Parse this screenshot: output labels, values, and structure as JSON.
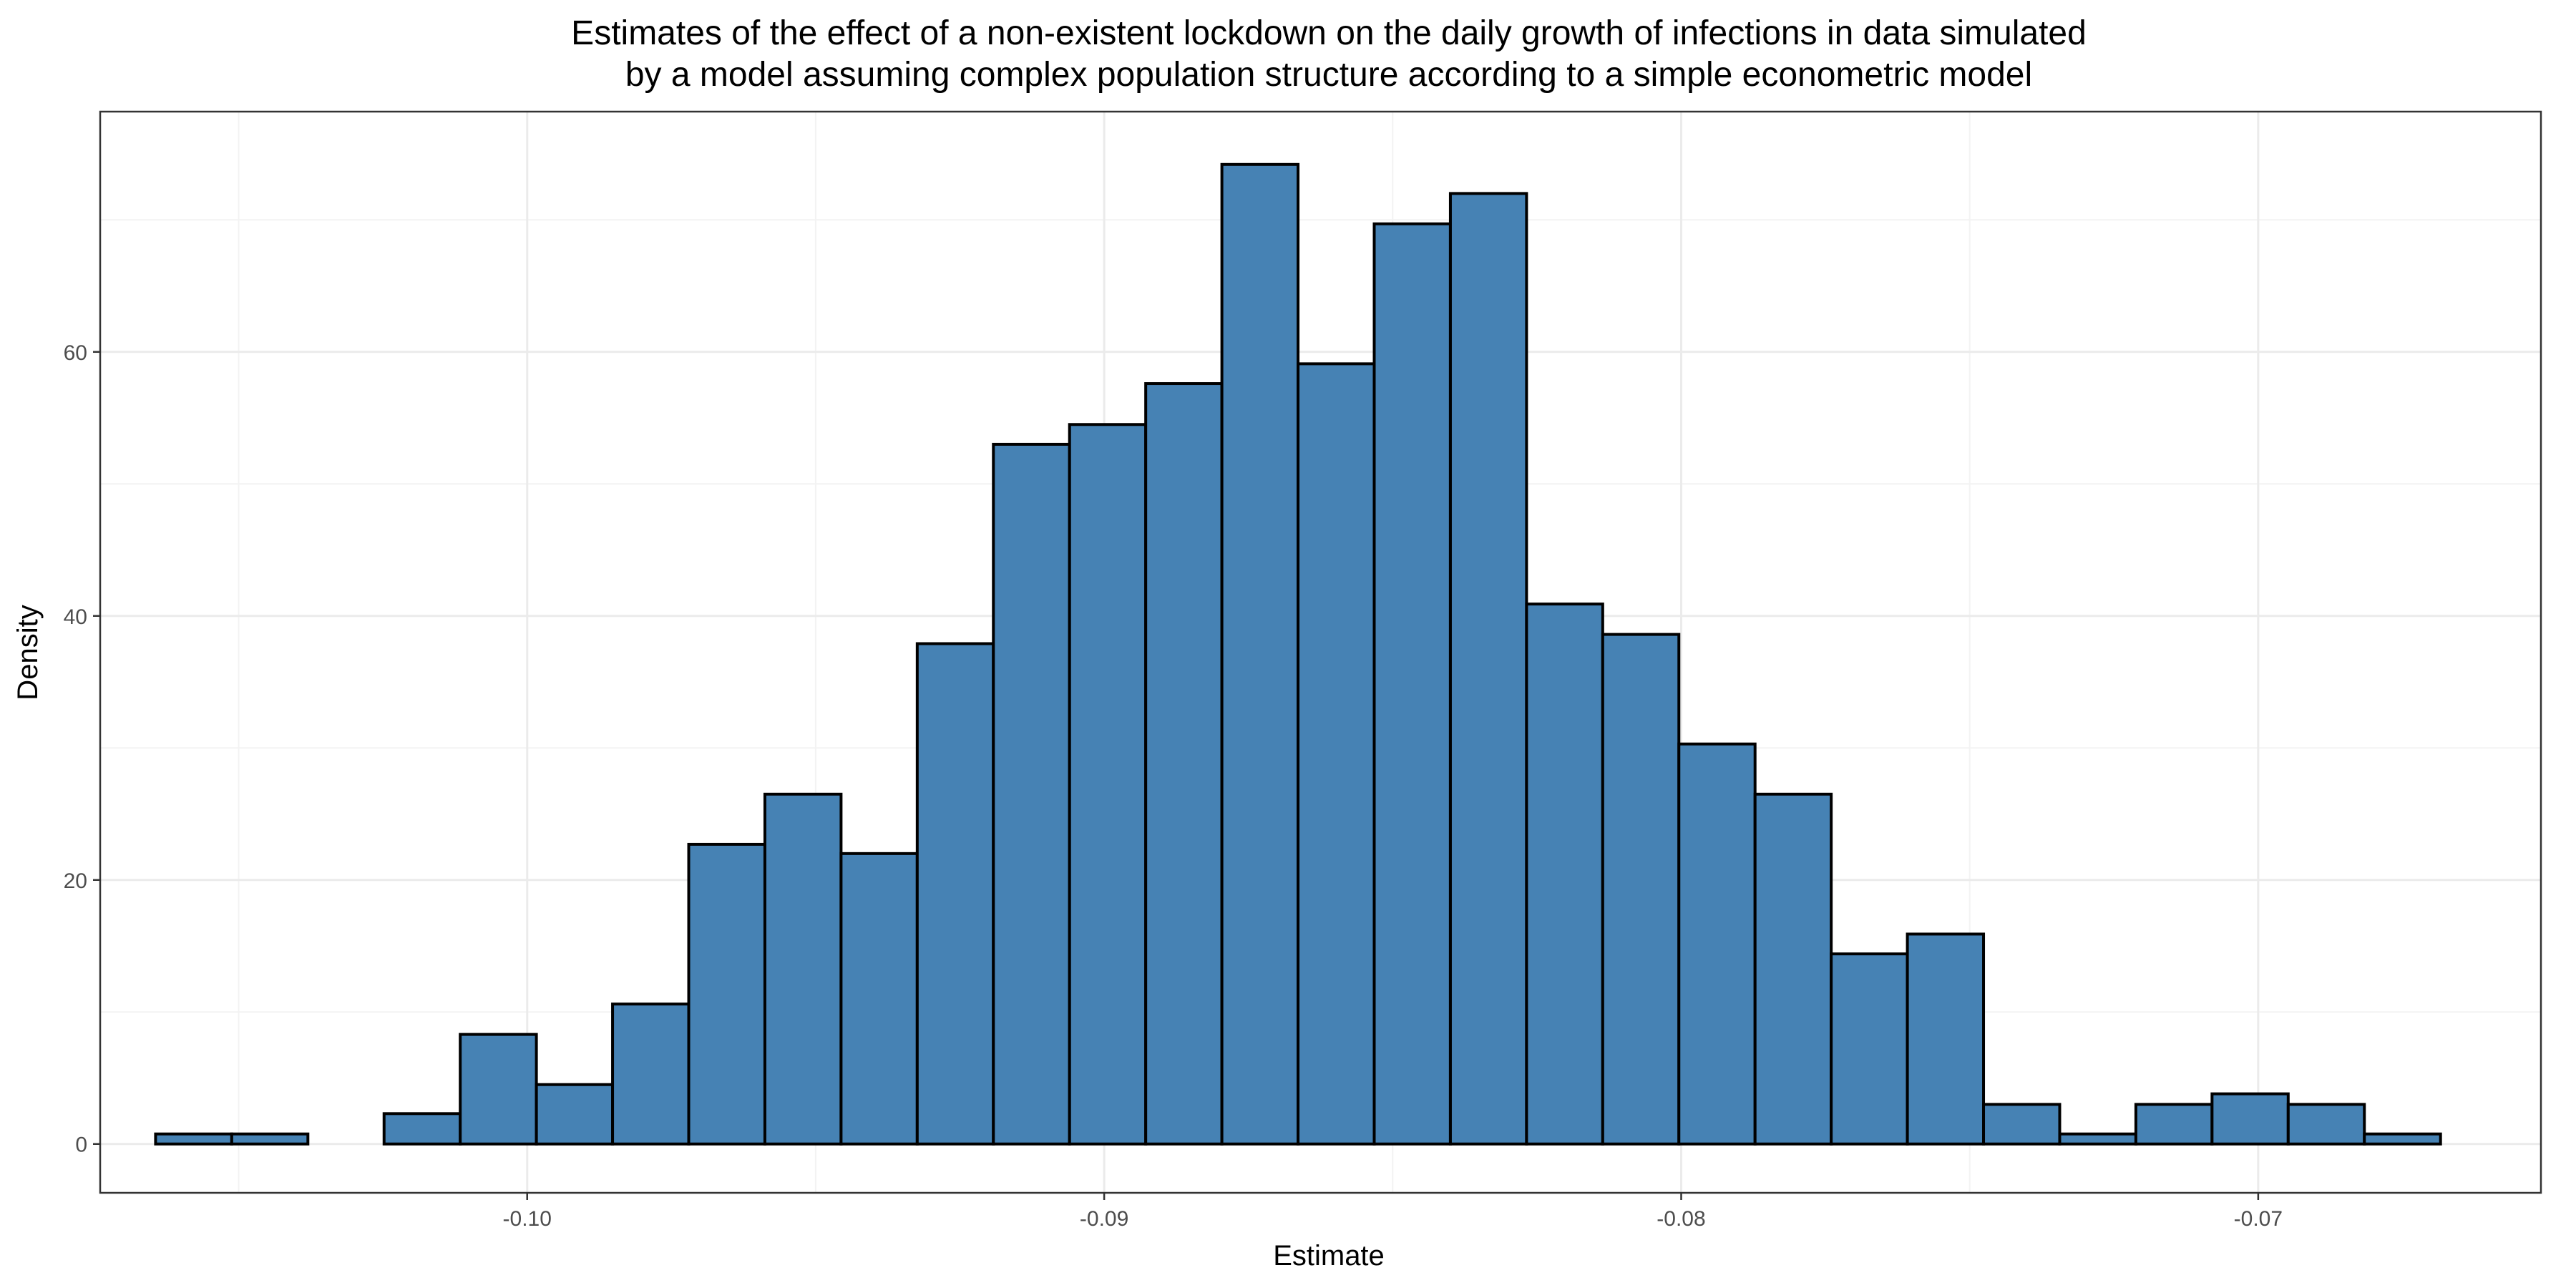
{
  "chart_data": {
    "type": "bar",
    "title_lines": [
      "Estimates of the effect of a non-existent lockdown on the daily growth of infections in data simulated",
      "by a model assuming complex population structure according to a simple econometric model"
    ],
    "xlabel": "Estimate",
    "ylabel": "Density",
    "xlim": [
      -0.1074,
      -0.0651
    ],
    "ylim": [
      -3.7,
      78.2
    ],
    "x_ticks": [
      -0.1,
      -0.09,
      -0.08,
      -0.07
    ],
    "x_tick_labels": [
      "-0.10",
      "-0.09",
      "-0.08",
      "-0.07"
    ],
    "y_ticks": [
      0,
      20,
      40,
      60
    ],
    "y_tick_labels": [
      "0",
      "20",
      "40",
      "60"
    ],
    "grid": true,
    "bin_width": 0.0013196,
    "bins": [
      {
        "x0": -0.10644,
        "x1": -0.10512,
        "density": 0.76
      },
      {
        "x0": -0.10512,
        "x1": -0.1038,
        "density": 0.76
      },
      {
        "x0": -0.1038,
        "x1": -0.10248,
        "density": 0.0
      },
      {
        "x0": -0.10248,
        "x1": -0.10116,
        "density": 2.3
      },
      {
        "x0": -0.10116,
        "x1": -0.09984,
        "density": 8.3
      },
      {
        "x0": -0.09984,
        "x1": -0.09852,
        "density": 4.5
      },
      {
        "x0": -0.09852,
        "x1": -0.0972,
        "density": 10.6
      },
      {
        "x0": -0.0972,
        "x1": -0.09588,
        "density": 22.7
      },
      {
        "x0": -0.09588,
        "x1": -0.09456,
        "density": 26.5
      },
      {
        "x0": -0.09456,
        "x1": -0.09324,
        "density": 22.0
      },
      {
        "x0": -0.09324,
        "x1": -0.09192,
        "density": 37.9
      },
      {
        "x0": -0.09192,
        "x1": -0.0906,
        "density": 53.0
      },
      {
        "x0": -0.0906,
        "x1": -0.08928,
        "density": 54.5
      },
      {
        "x0": -0.08928,
        "x1": -0.08796,
        "density": 57.6
      },
      {
        "x0": -0.08796,
        "x1": -0.08664,
        "density": 74.2
      },
      {
        "x0": -0.08664,
        "x1": -0.08532,
        "density": 59.1
      },
      {
        "x0": -0.08532,
        "x1": -0.084,
        "density": 69.7
      },
      {
        "x0": -0.084,
        "x1": -0.08268,
        "density": 72.0
      },
      {
        "x0": -0.08268,
        "x1": -0.08136,
        "density": 40.9
      },
      {
        "x0": -0.08136,
        "x1": -0.08004,
        "density": 38.6
      },
      {
        "x0": -0.08004,
        "x1": -0.07872,
        "density": 30.3
      },
      {
        "x0": -0.07872,
        "x1": -0.0774,
        "density": 26.5
      },
      {
        "x0": -0.0774,
        "x1": -0.07608,
        "density": 14.4
      },
      {
        "x0": -0.07608,
        "x1": -0.07476,
        "density": 15.9
      },
      {
        "x0": -0.07476,
        "x1": -0.07344,
        "density": 3.0
      },
      {
        "x0": -0.07344,
        "x1": -0.07212,
        "density": 0.76
      },
      {
        "x0": -0.07212,
        "x1": -0.0708,
        "density": 3.0
      },
      {
        "x0": -0.0708,
        "x1": -0.06948,
        "density": 3.8
      },
      {
        "x0": -0.06948,
        "x1": -0.06816,
        "density": 3.0
      },
      {
        "x0": -0.06816,
        "x1": -0.06684,
        "density": 0.76
      }
    ],
    "colors": {
      "bar_fill": "#4682b4",
      "bar_outline": "#000000",
      "panel_border": "#333333",
      "grid_major": "#ebebeb",
      "grid_minor": "#f3f3f3"
    }
  }
}
